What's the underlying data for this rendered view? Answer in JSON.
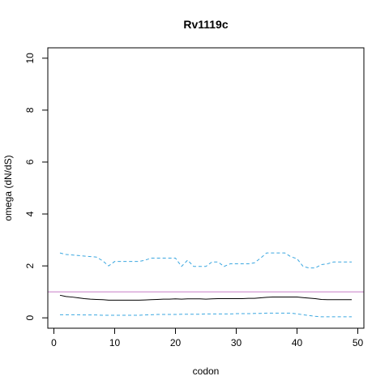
{
  "chart_data": {
    "type": "line",
    "title": "Rv1119c",
    "xlabel": "codon",
    "ylabel": "omega (dN/dS)",
    "xlim": [
      -1,
      51
    ],
    "ylim": [
      -0.4,
      10.4
    ],
    "x_ticks": [
      0,
      10,
      20,
      30,
      40,
      50
    ],
    "y_ticks": [
      0,
      2,
      4,
      6,
      8,
      10
    ],
    "grid": false,
    "legend": "none",
    "reference_line": {
      "y": 1,
      "color": "#c77cc7"
    },
    "series": [
      {
        "role": "estimate",
        "color": "#000000",
        "style": "solid",
        "x": [
          1,
          2,
          3,
          4,
          5,
          6,
          7,
          8,
          9,
          10,
          11,
          12,
          13,
          14,
          15,
          16,
          17,
          18,
          19,
          20,
          21,
          22,
          23,
          24,
          25,
          26,
          27,
          28,
          29,
          30,
          31,
          32,
          33,
          34,
          35,
          36,
          37,
          38,
          39,
          40,
          41,
          42,
          43,
          44,
          45,
          46,
          47,
          48,
          49
        ],
        "values": [
          0.87,
          0.82,
          0.8,
          0.77,
          0.74,
          0.72,
          0.71,
          0.7,
          0.68,
          0.68,
          0.68,
          0.68,
          0.68,
          0.68,
          0.69,
          0.7,
          0.71,
          0.72,
          0.72,
          0.73,
          0.72,
          0.73,
          0.73,
          0.73,
          0.72,
          0.73,
          0.74,
          0.74,
          0.74,
          0.74,
          0.74,
          0.75,
          0.75,
          0.77,
          0.79,
          0.8,
          0.8,
          0.8,
          0.8,
          0.8,
          0.78,
          0.76,
          0.74,
          0.71,
          0.7,
          0.7,
          0.7,
          0.7,
          0.7
        ]
      },
      {
        "role": "upper",
        "color": "#3ba7e0",
        "style": "dashed",
        "x": [
          1,
          2,
          3,
          4,
          5,
          6,
          7,
          8,
          9,
          10,
          11,
          12,
          13,
          14,
          15,
          16,
          17,
          18,
          19,
          20,
          21,
          22,
          23,
          24,
          25,
          26,
          27,
          28,
          29,
          30,
          31,
          32,
          33,
          34,
          35,
          36,
          37,
          38,
          39,
          40,
          41,
          42,
          43,
          44,
          45,
          46,
          47,
          48,
          49
        ],
        "values": [
          2.5,
          2.44,
          2.42,
          2.4,
          2.38,
          2.36,
          2.34,
          2.2,
          2.0,
          2.17,
          2.17,
          2.17,
          2.17,
          2.17,
          2.22,
          2.3,
          2.3,
          2.3,
          2.3,
          2.3,
          1.98,
          2.22,
          1.98,
          1.98,
          1.98,
          2.15,
          2.15,
          1.98,
          2.08,
          2.08,
          2.08,
          2.08,
          2.12,
          2.3,
          2.5,
          2.5,
          2.5,
          2.5,
          2.35,
          2.28,
          1.98,
          1.92,
          1.92,
          2.05,
          2.08,
          2.15,
          2.15,
          2.15,
          2.15
        ]
      },
      {
        "role": "lower",
        "color": "#3ba7e0",
        "style": "dashed",
        "x": [
          1,
          2,
          3,
          4,
          5,
          6,
          7,
          8,
          9,
          10,
          11,
          12,
          13,
          14,
          15,
          16,
          17,
          18,
          19,
          20,
          21,
          22,
          23,
          24,
          25,
          26,
          27,
          28,
          29,
          30,
          31,
          32,
          33,
          34,
          35,
          36,
          37,
          38,
          39,
          40,
          41,
          42,
          43,
          44,
          45,
          46,
          47,
          48,
          49
        ],
        "values": [
          0.12,
          0.12,
          0.12,
          0.12,
          0.11,
          0.11,
          0.11,
          0.1,
          0.1,
          0.1,
          0.1,
          0.1,
          0.1,
          0.1,
          0.11,
          0.12,
          0.13,
          0.13,
          0.13,
          0.13,
          0.14,
          0.14,
          0.14,
          0.14,
          0.15,
          0.15,
          0.15,
          0.15,
          0.15,
          0.16,
          0.16,
          0.16,
          0.17,
          0.17,
          0.18,
          0.18,
          0.18,
          0.18,
          0.18,
          0.15,
          0.12,
          0.09,
          0.06,
          0.04,
          0.04,
          0.04,
          0.04,
          0.04,
          0.04
        ]
      }
    ]
  }
}
